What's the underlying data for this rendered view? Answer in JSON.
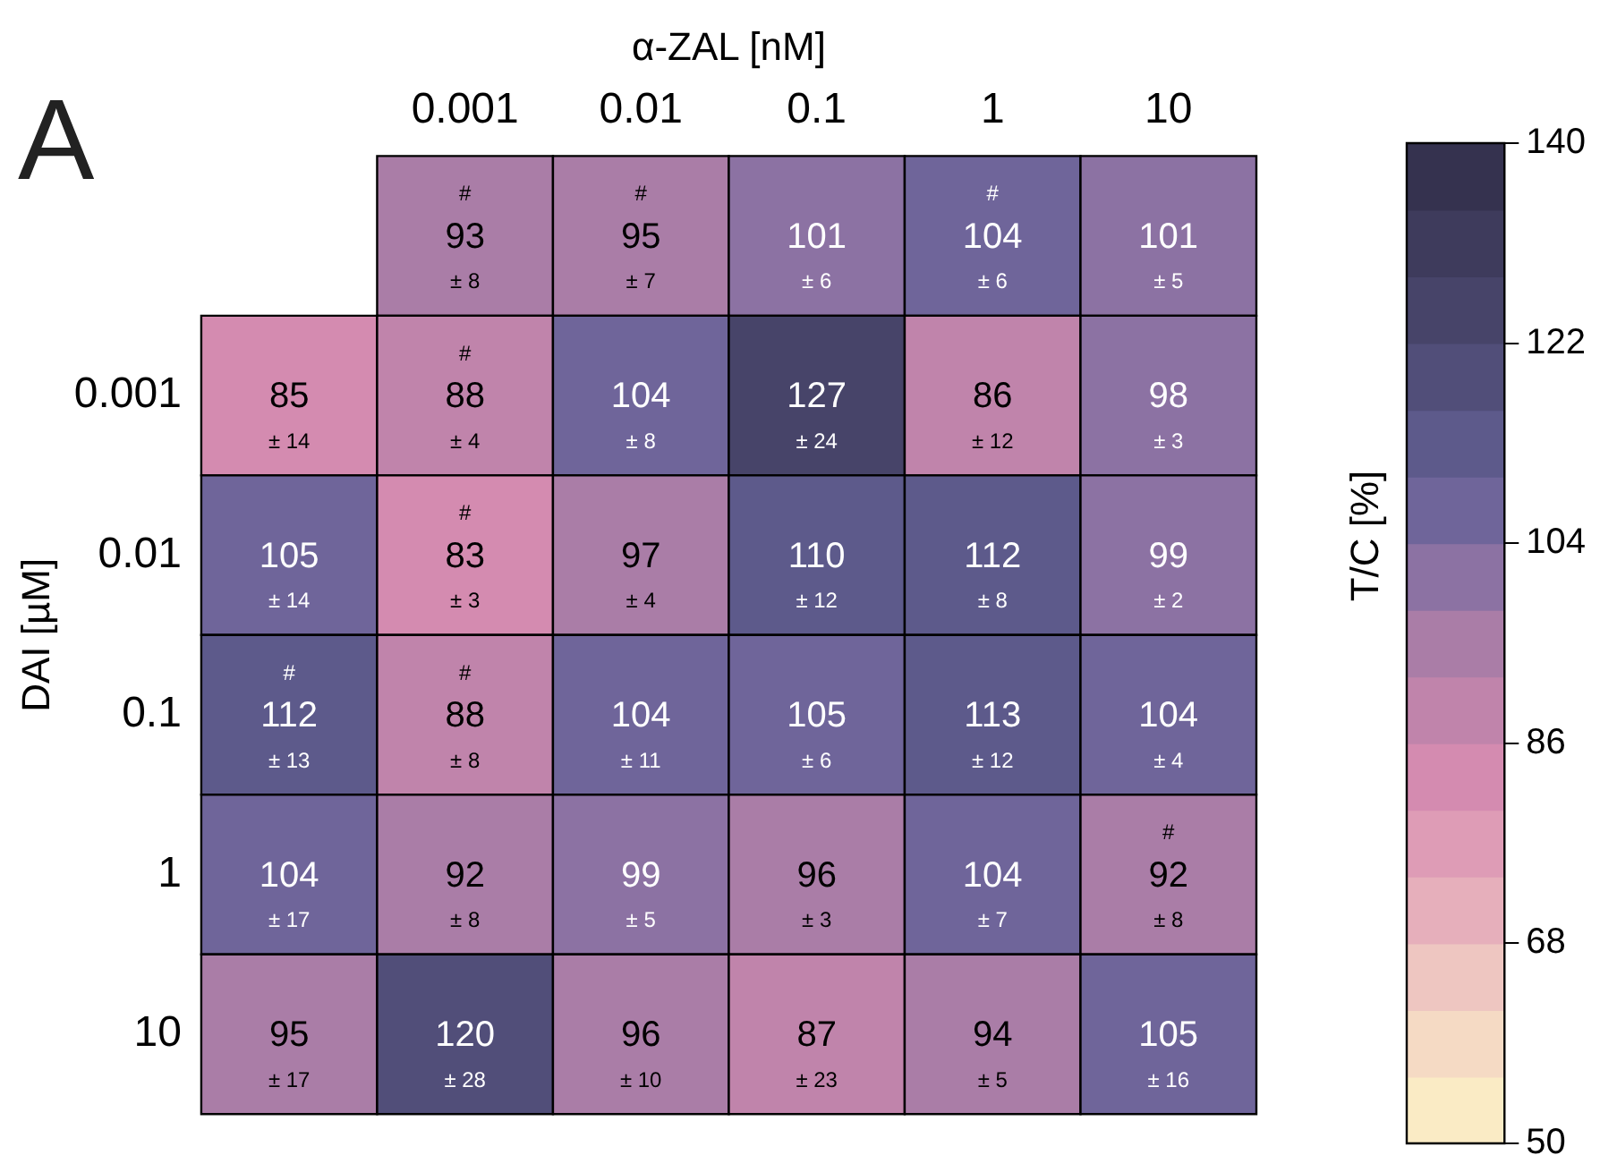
{
  "chart_data": {
    "type": "heatmap",
    "xlabel": "α-ZAL [nM]",
    "ylabel": "DAI [µM]",
    "clabel": "T/C [%]",
    "annotations": [
      "A"
    ],
    "categories": [
      null,
      "0.001",
      "0.01",
      "0.1",
      "1",
      "10"
    ],
    "y_categories": [
      null,
      "0.001",
      "0.01",
      "0.1",
      "1",
      "10"
    ],
    "cells": [
      [
        null,
        93,
        95,
        101,
        104,
        101
      ],
      [
        85,
        88,
        104,
        127,
        86,
        98
      ],
      [
        105,
        83,
        97,
        110,
        112,
        99
      ],
      [
        112,
        88,
        104,
        105,
        113,
        104
      ],
      [
        104,
        92,
        99,
        96,
        104,
        92
      ],
      [
        95,
        120,
        96,
        87,
        94,
        105
      ]
    ],
    "cell_labels": [
      [
        null,
        "#\n93\n± 8",
        "#\n95\n± 7",
        "101\n± 6",
        "#\n104\n± 6",
        "101\n± 5"
      ],
      [
        "85\n± 14",
        "#\n88\n± 4",
        "104\n± 8",
        "127\n± 24",
        "86\n± 12",
        "98\n± 3"
      ],
      [
        "105\n± 14",
        "#\n83\n± 3",
        "97\n± 4",
        "110\n± 12",
        "112\n± 8",
        "99\n± 2"
      ],
      [
        "#\n112\n± 13",
        "#\n88\n± 8",
        "104\n± 11",
        "105\n± 6",
        "113\n± 12",
        "104\n± 4"
      ],
      [
        "104\n± 17",
        "92\n± 8",
        "99\n± 5",
        "96\n± 3",
        "104\n± 7",
        "#\n92\n± 8"
      ],
      [
        "95\n± 17",
        "120\n± 28",
        "96\n± 10",
        "87\n± 23",
        "94\n± 5",
        "105\n± 16"
      ]
    ],
    "clim": [
      50,
      140
    ],
    "cticks": [
      50,
      68,
      86,
      104,
      122,
      140
    ]
  }
}
